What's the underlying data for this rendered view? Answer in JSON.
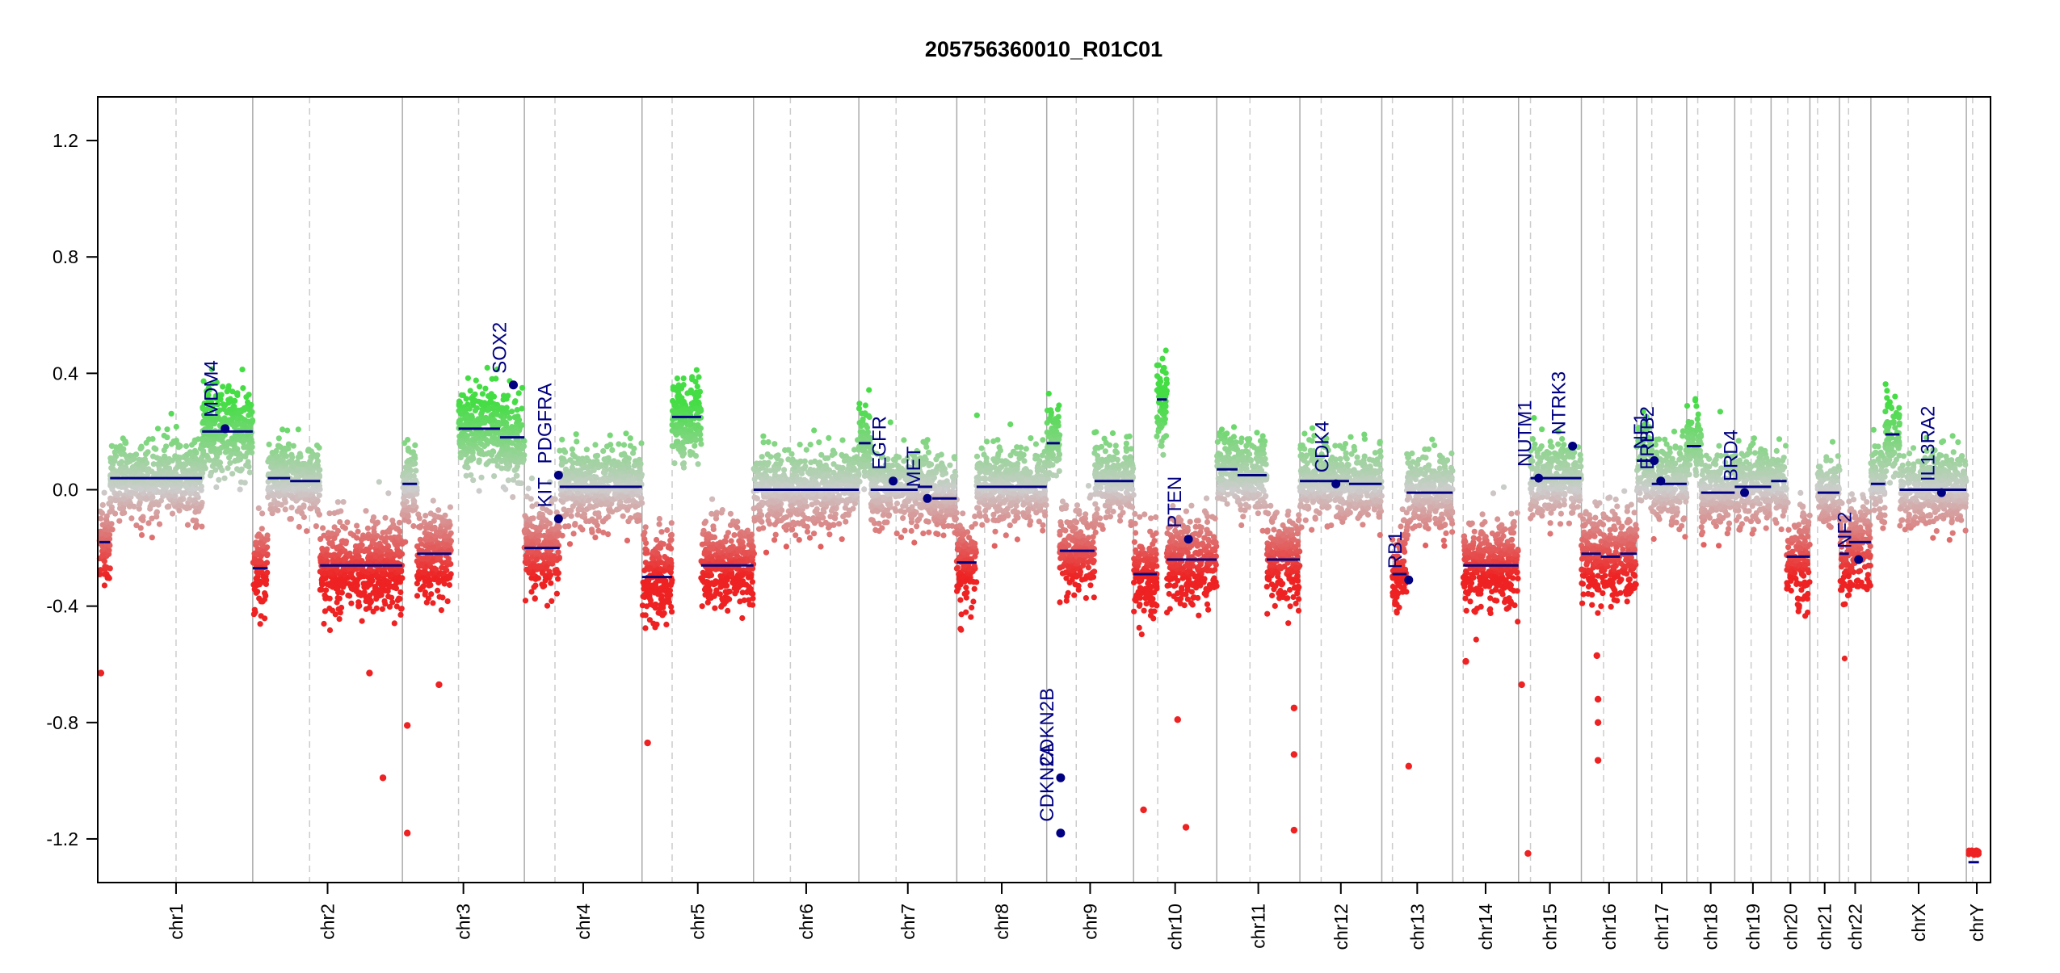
{
  "chart_data": {
    "type": "scatter",
    "title": "205756360010_R01C01",
    "xlabel": "",
    "ylabel": "",
    "ylim": [
      -1.35,
      1.35
    ],
    "y_ticks": [
      -1.2,
      -0.8,
      -0.4,
      0.0,
      0.4,
      0.8,
      1.2
    ],
    "y_tick_labels": [
      "-1.2",
      "-0.8",
      "-0.4",
      "0.0",
      "0.4",
      "0.8",
      "1.2"
    ],
    "grid": false,
    "colors": {
      "gain": "#44dd44",
      "neutral": "#cccccc",
      "loss": "#ee2222",
      "segment": "#000080",
      "gene": "#000080",
      "chrom_border": "#aaaaaa",
      "centromere": "#cccccc"
    },
    "chromosomes": [
      {
        "name": "chr1",
        "size": 249,
        "centromere": 0.5
      },
      {
        "name": "chr2",
        "size": 243,
        "centromere": 0.38
      },
      {
        "name": "chr3",
        "size": 198,
        "centromere": 0.46
      },
      {
        "name": "chr4",
        "size": 191,
        "centromere": 0.26
      },
      {
        "name": "chr5",
        "size": 181,
        "centromere": 0.27
      },
      {
        "name": "chr6",
        "size": 171,
        "centromere": 0.35
      },
      {
        "name": "chr7",
        "size": 159,
        "centromere": 0.38
      },
      {
        "name": "chr8",
        "size": 146,
        "centromere": 0.31
      },
      {
        "name": "chr9",
        "size": 141,
        "centromere": 0.34
      },
      {
        "name": "chr10",
        "size": 135,
        "centromere": 0.29
      },
      {
        "name": "chr11",
        "size": 135,
        "centromere": 0.4
      },
      {
        "name": "chr12",
        "size": 133,
        "centromere": 0.26
      },
      {
        "name": "chr13",
        "size": 115,
        "centromere": 0.15
      },
      {
        "name": "chr14",
        "size": 107,
        "centromere": 0.16
      },
      {
        "name": "chr15",
        "size": 102,
        "centromere": 0.19
      },
      {
        "name": "chr16",
        "size": 90,
        "centromere": 0.4
      },
      {
        "name": "chr17",
        "size": 81,
        "centromere": 0.3
      },
      {
        "name": "chr18",
        "size": 78,
        "centromere": 0.23
      },
      {
        "name": "chr19",
        "size": 59,
        "centromere": 0.45
      },
      {
        "name": "chr20",
        "size": 63,
        "centromere": 0.43
      },
      {
        "name": "chr21",
        "size": 48,
        "centromere": 0.26
      },
      {
        "name": "chr22",
        "size": 51,
        "centromere": 0.29
      },
      {
        "name": "chrX",
        "size": 155,
        "centromere": 0.39
      },
      {
        "name": "chrY",
        "size": 34,
        "centromere": 0.3
      }
    ],
    "segments": [
      {
        "chr": "chr1",
        "start": 0.0,
        "end": 0.07,
        "value": -0.18
      },
      {
        "chr": "chr1",
        "start": 0.07,
        "end": 0.67,
        "value": 0.04
      },
      {
        "chr": "chr1",
        "start": 0.67,
        "end": 1.0,
        "value": 0.2
      },
      {
        "chr": "chr2",
        "start": 0.0,
        "end": 0.1,
        "value": -0.27
      },
      {
        "chr": "chr2",
        "start": 0.1,
        "end": 0.25,
        "value": 0.04
      },
      {
        "chr": "chr2",
        "start": 0.25,
        "end": 0.45,
        "value": 0.03
      },
      {
        "chr": "chr2",
        "start": 0.45,
        "end": 1.0,
        "value": -0.26
      },
      {
        "chr": "chr3",
        "start": 0.0,
        "end": 0.12,
        "value": 0.02
      },
      {
        "chr": "chr3",
        "start": 0.12,
        "end": 0.4,
        "value": -0.22
      },
      {
        "chr": "chr3",
        "start": 0.46,
        "end": 0.8,
        "value": 0.21
      },
      {
        "chr": "chr3",
        "start": 0.8,
        "end": 1.0,
        "value": 0.18
      },
      {
        "chr": "chr4",
        "start": 0.0,
        "end": 0.3,
        "value": -0.2
      },
      {
        "chr": "chr4",
        "start": 0.3,
        "end": 1.0,
        "value": 0.01
      },
      {
        "chr": "chr5",
        "start": 0.0,
        "end": 0.27,
        "value": -0.3
      },
      {
        "chr": "chr5",
        "start": 0.27,
        "end": 0.53,
        "value": 0.25
      },
      {
        "chr": "chr5",
        "start": 0.53,
        "end": 1.0,
        "value": -0.26
      },
      {
        "chr": "chr6",
        "start": 0.0,
        "end": 1.0,
        "value": 0.0
      },
      {
        "chr": "chr7",
        "start": 0.0,
        "end": 0.12,
        "value": 0.16
      },
      {
        "chr": "chr7",
        "start": 0.12,
        "end": 0.6,
        "value": 0.0
      },
      {
        "chr": "chr7",
        "start": 0.6,
        "end": 0.75,
        "value": 0.01
      },
      {
        "chr": "chr7",
        "start": 0.75,
        "end": 1.0,
        "value": -0.03
      },
      {
        "chr": "chr8",
        "start": 0.0,
        "end": 0.22,
        "value": -0.25
      },
      {
        "chr": "chr8",
        "start": 0.22,
        "end": 1.0,
        "value": 0.01
      },
      {
        "chr": "chr9",
        "start": 0.0,
        "end": 0.15,
        "value": 0.16
      },
      {
        "chr": "chr9",
        "start": 0.15,
        "end": 0.55,
        "value": -0.21
      },
      {
        "chr": "chr9",
        "start": 0.55,
        "end": 1.0,
        "value": 0.03
      },
      {
        "chr": "chr10",
        "start": 0.0,
        "end": 0.28,
        "value": -0.29
      },
      {
        "chr": "chr10",
        "start": 0.28,
        "end": 0.4,
        "value": 0.31
      },
      {
        "chr": "chr10",
        "start": 0.4,
        "end": 1.0,
        "value": -0.24
      },
      {
        "chr": "chr11",
        "start": 0.0,
        "end": 0.25,
        "value": 0.07
      },
      {
        "chr": "chr11",
        "start": 0.25,
        "end": 0.6,
        "value": 0.05
      },
      {
        "chr": "chr11",
        "start": 0.6,
        "end": 1.0,
        "value": -0.24
      },
      {
        "chr": "chr12",
        "start": 0.0,
        "end": 0.6,
        "value": 0.03
      },
      {
        "chr": "chr12",
        "start": 0.6,
        "end": 1.0,
        "value": 0.02
      },
      {
        "chr": "chr13",
        "start": 0.15,
        "end": 0.35,
        "value": -0.29
      },
      {
        "chr": "chr13",
        "start": 0.35,
        "end": 1.0,
        "value": -0.01
      },
      {
        "chr": "chr14",
        "start": 0.16,
        "end": 1.0,
        "value": -0.26
      },
      {
        "chr": "chr15",
        "start": 0.19,
        "end": 1.0,
        "value": 0.04
      },
      {
        "chr": "chr16",
        "start": 0.0,
        "end": 0.35,
        "value": -0.22
      },
      {
        "chr": "chr16",
        "start": 0.35,
        "end": 0.7,
        "value": -0.23
      },
      {
        "chr": "chr16",
        "start": 0.7,
        "end": 1.0,
        "value": -0.22
      },
      {
        "chr": "chr17",
        "start": 0.0,
        "end": 0.3,
        "value": 0.1
      },
      {
        "chr": "chr17",
        "start": 0.3,
        "end": 1.0,
        "value": 0.02
      },
      {
        "chr": "chr18",
        "start": 0.0,
        "end": 0.3,
        "value": 0.15
      },
      {
        "chr": "chr18",
        "start": 0.3,
        "end": 1.0,
        "value": -0.01
      },
      {
        "chr": "chr19",
        "start": 0.0,
        "end": 1.0,
        "value": 0.01
      },
      {
        "chr": "chr20",
        "start": 0.0,
        "end": 0.4,
        "value": 0.03
      },
      {
        "chr": "chr20",
        "start": 0.4,
        "end": 1.0,
        "value": -0.23
      },
      {
        "chr": "chr21",
        "start": 0.26,
        "end": 1.0,
        "value": -0.01
      },
      {
        "chr": "chr22",
        "start": 0.0,
        "end": 0.3,
        "value": -0.22
      },
      {
        "chr": "chr22",
        "start": 0.3,
        "end": 1.0,
        "value": -0.18
      },
      {
        "chr": "chrX",
        "start": 0.0,
        "end": 0.15,
        "value": 0.02
      },
      {
        "chr": "chrX",
        "start": 0.15,
        "end": 0.3,
        "value": 0.19
      },
      {
        "chr": "chrX",
        "start": 0.3,
        "end": 1.0,
        "value": 0.0
      },
      {
        "chr": "chrY",
        "start": 0.1,
        "end": 0.6,
        "value": -1.28
      }
    ],
    "genes": [
      {
        "name": "MDM4",
        "chr": "chr1",
        "pos": 0.82,
        "value": 0.21
      },
      {
        "name": "SOX2",
        "chr": "chr3",
        "pos": 0.91,
        "value": 0.36
      },
      {
        "name": "PDGFRA",
        "chr": "chr4",
        "pos": 0.29,
        "value": 0.05
      },
      {
        "name": "KIT",
        "chr": "chr4",
        "pos": 0.29,
        "value": -0.1
      },
      {
        "name": "EGFR",
        "chr": "chr7",
        "pos": 0.35,
        "value": 0.03
      },
      {
        "name": "MET",
        "chr": "chr7",
        "pos": 0.7,
        "value": -0.03
      },
      {
        "name": "CDKN2A",
        "chr": "chr9",
        "pos": 0.16,
        "value": -1.18
      },
      {
        "name": "CDKN2B",
        "chr": "chr9",
        "pos": 0.16,
        "value": -0.99
      },
      {
        "name": "PTEN",
        "chr": "chr10",
        "pos": 0.66,
        "value": -0.17
      },
      {
        "name": "CDK4",
        "chr": "chr12",
        "pos": 0.44,
        "value": 0.02
      },
      {
        "name": "RB1",
        "chr": "chr13",
        "pos": 0.38,
        "value": -0.31
      },
      {
        "name": "NUTM1",
        "chr": "chr15",
        "pos": 0.32,
        "value": 0.04
      },
      {
        "name": "NTRK3",
        "chr": "chr15",
        "pos": 0.86,
        "value": 0.15
      },
      {
        "name": "NF1",
        "chr": "chr17",
        "pos": 0.35,
        "value": 0.1
      },
      {
        "name": "ERBB2",
        "chr": "chr17",
        "pos": 0.48,
        "value": 0.03
      },
      {
        "name": "BRD4",
        "chr": "chr19",
        "pos": 0.27,
        "value": -0.01
      },
      {
        "name": "NF2",
        "chr": "chr22",
        "pos": 0.61,
        "value": -0.24
      },
      {
        "name": "IL13RA2",
        "chr": "chrX",
        "pos": 0.74,
        "value": -0.01
      }
    ],
    "outliers": [
      {
        "chr": "chr1",
        "pos": 0.01,
        "value": -0.63
      },
      {
        "chr": "chr2",
        "pos": 0.78,
        "value": -0.63
      },
      {
        "chr": "chr2",
        "pos": 0.87,
        "value": -0.99
      },
      {
        "chr": "chr3",
        "pos": 0.04,
        "value": -0.81
      },
      {
        "chr": "chr3",
        "pos": 0.04,
        "value": -1.18
      },
      {
        "chr": "chr3",
        "pos": 0.3,
        "value": -0.67
      },
      {
        "chr": "chr5",
        "pos": 0.05,
        "value": -0.87
      },
      {
        "chr": "chr10",
        "pos": 0.12,
        "value": -1.1
      },
      {
        "chr": "chr10",
        "pos": 0.53,
        "value": -0.79
      },
      {
        "chr": "chr10",
        "pos": 0.63,
        "value": -1.16
      },
      {
        "chr": "chr11",
        "pos": 0.93,
        "value": -0.75
      },
      {
        "chr": "chr11",
        "pos": 0.93,
        "value": -0.91
      },
      {
        "chr": "chr11",
        "pos": 0.93,
        "value": -1.17
      },
      {
        "chr": "chr13",
        "pos": 0.38,
        "value": -0.95
      },
      {
        "chr": "chr14",
        "pos": 0.2,
        "value": -0.59
      },
      {
        "chr": "chr15",
        "pos": 0.05,
        "value": -0.67
      },
      {
        "chr": "chr15",
        "pos": 0.15,
        "value": -1.25
      },
      {
        "chr": "chr16",
        "pos": 0.28,
        "value": -0.57
      },
      {
        "chr": "chr16",
        "pos": 0.3,
        "value": -0.72
      },
      {
        "chr": "chr16",
        "pos": 0.3,
        "value": -0.8
      },
      {
        "chr": "chr16",
        "pos": 0.3,
        "value": -0.93
      }
    ]
  }
}
